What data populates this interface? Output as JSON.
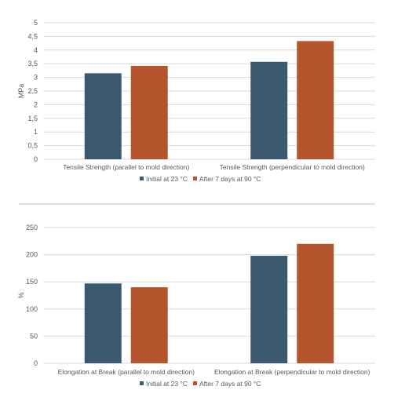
{
  "colors": {
    "series_1": "#3b5a6f",
    "series_2": "#b5552e",
    "grid": "#d9d9d9",
    "divider": "#bfbfbf"
  },
  "chart_data": [
    {
      "type": "bar",
      "categories": [
        "Tensile Strength (parallel to mold direction)",
        "Tensile Strength (perpendicular to mold direction)"
      ],
      "series": [
        {
          "name": "Initial at 23 °C",
          "values": [
            3.15,
            3.57
          ]
        },
        {
          "name": "After 7 days at 90 °C",
          "values": [
            3.42,
            4.33
          ]
        }
      ],
      "ylabel": "MPa",
      "ylim": [
        0,
        5
      ],
      "yticks": [
        "0",
        "0,5",
        "1",
        "1,5",
        "2",
        "2,5",
        "3",
        "3,5",
        "4",
        "4,5",
        "5"
      ],
      "grid": true,
      "legend": "bottom"
    },
    {
      "type": "bar",
      "categories": [
        "Elongation at Break (parallel to mold direction)",
        "Elongation at Break (perpendicular to mold direction)"
      ],
      "series": [
        {
          "name": "Initial at 23 °C",
          "values": [
            147,
            198
          ]
        },
        {
          "name": "After 7 days at 90 °C",
          "values": [
            140,
            220
          ]
        }
      ],
      "ylabel": "%",
      "ylim": [
        0,
        250
      ],
      "yticks": [
        "0",
        "50",
        "100",
        "150",
        "200",
        "250"
      ],
      "grid": true,
      "legend": "bottom"
    }
  ]
}
